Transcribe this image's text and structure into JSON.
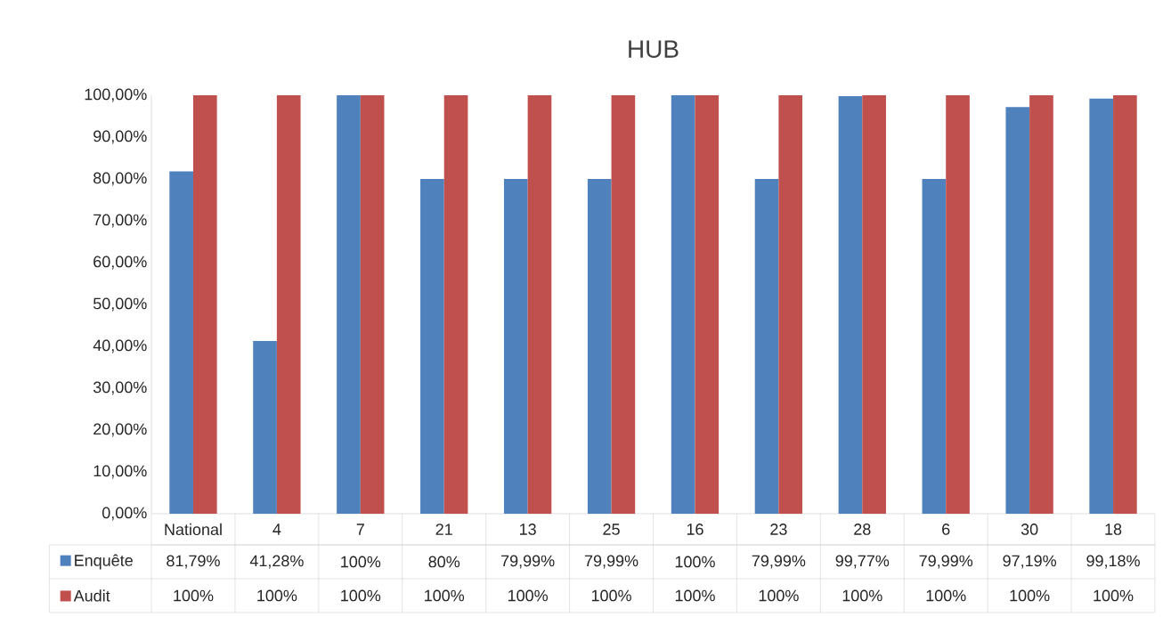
{
  "chart_data": {
    "type": "bar",
    "title": "HUB",
    "categories": [
      "National",
      "4",
      "7",
      "21",
      "13",
      "25",
      "16",
      "23",
      "28",
      "6",
      "30",
      "18"
    ],
    "series": [
      {
        "name": "Enquête",
        "color": "#4f81bd",
        "values": [
          81.79,
          41.28,
          100,
          80,
          79.99,
          79.99,
          100,
          79.99,
          99.77,
          79.99,
          97.19,
          99.18
        ],
        "value_labels": [
          "81,79%",
          "41,28%",
          "100%",
          "80%",
          "79,99%",
          "79,99%",
          "100%",
          "79,99%",
          "99,77%",
          "79,99%",
          "97,19%",
          "99,18%"
        ]
      },
      {
        "name": "Audit",
        "color": "#c0504d",
        "values": [
          100,
          100,
          100,
          100,
          100,
          100,
          100,
          100,
          100,
          100,
          100,
          100
        ],
        "value_labels": [
          "100%",
          "100%",
          "100%",
          "100%",
          "100%",
          "100%",
          "100%",
          "100%",
          "100%",
          "100%",
          "100%",
          "100%"
        ]
      }
    ],
    "ylim": [
      0,
      100
    ],
    "yticks": [
      {
        "value": 0,
        "label": "0,00%"
      },
      {
        "value": 10,
        "label": "10,00%"
      },
      {
        "value": 20,
        "label": "20,00%"
      },
      {
        "value": 30,
        "label": "30,00%"
      },
      {
        "value": 40,
        "label": "40,00%"
      },
      {
        "value": 50,
        "label": "50,00%"
      },
      {
        "value": 60,
        "label": "60,00%"
      },
      {
        "value": 70,
        "label": "70,00%"
      },
      {
        "value": 80,
        "label": "80,00%"
      },
      {
        "value": 90,
        "label": "90,00%"
      },
      {
        "value": 100,
        "label": "100,00%"
      }
    ],
    "legend": "bottom"
  }
}
